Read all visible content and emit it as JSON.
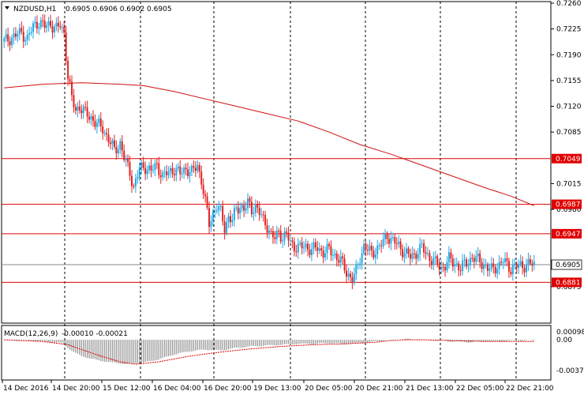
{
  "header": {
    "symbol": "NZDUSD,H1",
    "ohlc": "0.6905 0.6906 0.6902 0.6905",
    "dropdown_icon": "triangle-down-icon"
  },
  "indicator": {
    "label": "MACD(12,26,9)",
    "values": "-0.00010 -0.00021"
  },
  "colors": {
    "bull": "#1ca7e6",
    "bear": "#e02020",
    "ma": "#d01010",
    "hline": "#e00000",
    "grid": "#000000",
    "macd_hist": "#9a9a9a",
    "macd_signal": "#e00000",
    "current_line": "#8a8a8a"
  },
  "chart_data": [
    {
      "type": "candlestick",
      "title": "NZDUSD,H1",
      "y_ticks": [
        "0.7260",
        "0.7225",
        "0.7190",
        "0.7155",
        "0.7120",
        "0.7085",
        "0.7015",
        "0.6980",
        "0.6875"
      ],
      "ylim": [
        0.6875,
        0.726
      ],
      "x_ticks": [
        "14 Dec 2016",
        "14 Dec 20:00",
        "15 Dec 12:00",
        "16 Dec 04:00",
        "16 Dec 20:00",
        "19 Dec 13:00",
        "20 Dec 05:00",
        "20 Dec 21:00",
        "21 Dec 13:00",
        "22 Dec 05:00",
        "22 Dec 21:00"
      ],
      "horizontal_levels": [
        {
          "label": "0.7049",
          "value": 0.7049
        },
        {
          "label": "0.6987",
          "value": 0.6987
        },
        {
          "label": "0.6947",
          "value": 0.6947
        },
        {
          "label": "0.6881",
          "value": 0.6881
        }
      ],
      "current_price": {
        "label": "0.6905",
        "value": 0.6905
      },
      "close_path": [
        [
          0,
          0.7208
        ],
        [
          5,
          0.7215
        ],
        [
          9,
          0.722
        ],
        [
          12,
          0.7212
        ],
        [
          15,
          0.7228
        ],
        [
          18,
          0.7235
        ],
        [
          21,
          0.7228
        ],
        [
          24,
          0.7232
        ],
        [
          27,
          0.7225
        ],
        [
          29,
          0.723
        ],
        [
          31,
          0.722
        ],
        [
          33,
          0.716
        ],
        [
          35,
          0.713
        ],
        [
          37,
          0.7115
        ],
        [
          39,
          0.712
        ],
        [
          42,
          0.711
        ],
        [
          45,
          0.7105
        ],
        [
          48,
          0.7095
        ],
        [
          51,
          0.709
        ],
        [
          54,
          0.7075
        ],
        [
          57,
          0.706
        ],
        [
          60,
          0.707
        ],
        [
          62,
          0.705
        ],
        [
          65,
          0.703
        ],
        [
          67,
          0.701
        ],
        [
          70,
          0.7035
        ],
        [
          73,
          0.7038
        ],
        [
          76,
          0.7032
        ],
        [
          79,
          0.704
        ],
        [
          82,
          0.7025
        ],
        [
          85,
          0.703
        ],
        [
          88,
          0.7035
        ],
        [
          91,
          0.7028
        ],
        [
          94,
          0.7036
        ],
        [
          97,
          0.703
        ],
        [
          100,
          0.704
        ],
        [
          102,
          0.702
        ],
        [
          104,
          0.699
        ],
        [
          106,
          0.696
        ],
        [
          108,
          0.6975
        ],
        [
          110,
          0.6985
        ],
        [
          112,
          0.6975
        ],
        [
          114,
          0.6955
        ],
        [
          116,
          0.697
        ],
        [
          118,
          0.6965
        ],
        [
          120,
          0.698
        ],
        [
          122,
          0.6985
        ],
        [
          124,
          0.698
        ],
        [
          126,
          0.6988
        ],
        [
          128,
          0.698
        ],
        [
          130,
          0.6985
        ],
        [
          132,
          0.6975
        ],
        [
          134,
          0.6965
        ],
        [
          136,
          0.6958
        ],
        [
          138,
          0.6945
        ],
        [
          140,
          0.694
        ],
        [
          142,
          0.695
        ],
        [
          144,
          0.6942
        ],
        [
          146,
          0.6945
        ],
        [
          148,
          0.6935
        ],
        [
          150,
          0.693
        ],
        [
          153,
          0.6928
        ],
        [
          156,
          0.693
        ],
        [
          159,
          0.6925
        ],
        [
          162,
          0.6928
        ],
        [
          165,
          0.6922
        ],
        [
          168,
          0.6925
        ],
        [
          171,
          0.6918
        ],
        [
          174,
          0.691
        ],
        [
          177,
          0.6895
        ],
        [
          180,
          0.6885
        ],
        [
          182,
          0.6895
        ],
        [
          184,
          0.6915
        ],
        [
          186,
          0.693
        ],
        [
          188,
          0.6925
        ],
        [
          190,
          0.692
        ],
        [
          192,
          0.6925
        ],
        [
          194,
          0.693
        ],
        [
          196,
          0.6935
        ],
        [
          198,
          0.6945
        ],
        [
          200,
          0.694
        ],
        [
          202,
          0.6935
        ],
        [
          204,
          0.693
        ],
        [
          206,
          0.6925
        ],
        [
          208,
          0.692
        ],
        [
          210,
          0.6915
        ],
        [
          212,
          0.6918
        ],
        [
          214,
          0.6925
        ],
        [
          216,
          0.6928
        ],
        [
          218,
          0.692
        ],
        [
          220,
          0.6915
        ],
        [
          222,
          0.691
        ],
        [
          224,
          0.6905
        ],
        [
          226,
          0.69
        ],
        [
          228,
          0.6905
        ],
        [
          230,
          0.6912
        ],
        [
          232,
          0.6908
        ],
        [
          234,
          0.6905
        ],
        [
          236,
          0.69
        ],
        [
          238,
          0.6905
        ],
        [
          240,
          0.691
        ],
        [
          242,
          0.6915
        ],
        [
          244,
          0.6912
        ],
        [
          246,
          0.691
        ],
        [
          248,
          0.6905
        ],
        [
          250,
          0.69
        ],
        [
          252,
          0.6898
        ],
        [
          254,
          0.6902
        ],
        [
          256,
          0.6905
        ],
        [
          258,
          0.691
        ],
        [
          260,
          0.6905
        ],
        [
          262,
          0.69
        ],
        [
          264,
          0.6902
        ],
        [
          266,
          0.6903
        ],
        [
          268,
          0.6904
        ],
        [
          270,
          0.6905
        ],
        [
          272,
          0.6906
        ],
        [
          274,
          0.6905
        ]
      ],
      "moving_average": [
        [
          0,
          0.7145
        ],
        [
          20,
          0.715
        ],
        [
          40,
          0.7152
        ],
        [
          60,
          0.715
        ],
        [
          72,
          0.7148
        ],
        [
          88,
          0.714
        ],
        [
          104,
          0.713
        ],
        [
          120,
          0.712
        ],
        [
          136,
          0.711
        ],
        [
          152,
          0.71
        ],
        [
          168,
          0.7085
        ],
        [
          184,
          0.7068
        ],
        [
          200,
          0.7055
        ],
        [
          216,
          0.704
        ],
        [
          232,
          0.7025
        ],
        [
          248,
          0.701
        ],
        [
          262,
          0.6998
        ],
        [
          274,
          0.6985
        ]
      ]
    },
    {
      "type": "macd",
      "title": "MACD(12,26,9)",
      "y_ticks": [
        "0.00098",
        "0.00",
        "-0.00377"
      ],
      "ylim": [
        -0.00377,
        0.00098
      ],
      "histogram": [
        [
          0,
          0.0
        ],
        [
          10,
          -0.0001
        ],
        [
          20,
          -0.0002
        ],
        [
          30,
          -0.0004
        ],
        [
          33,
          -0.001
        ],
        [
          36,
          -0.0015
        ],
        [
          40,
          -0.002
        ],
        [
          48,
          -0.0025
        ],
        [
          56,
          -0.0028
        ],
        [
          64,
          -0.003
        ],
        [
          72,
          -0.0028
        ],
        [
          80,
          -0.0024
        ],
        [
          88,
          -0.0018
        ],
        [
          96,
          -0.0014
        ],
        [
          104,
          -0.0012
        ],
        [
          112,
          -0.0013
        ],
        [
          120,
          -0.001
        ],
        [
          128,
          -0.0008
        ],
        [
          136,
          -0.0007
        ],
        [
          144,
          -0.0006
        ],
        [
          152,
          -0.0005
        ],
        [
          160,
          -0.0005
        ],
        [
          168,
          -0.0004
        ],
        [
          176,
          -0.0005
        ],
        [
          184,
          -0.0004
        ],
        [
          192,
          -0.0002
        ],
        [
          200,
          0.0
        ],
        [
          208,
          0.0001
        ],
        [
          216,
          0.0
        ],
        [
          224,
          -0.0001
        ],
        [
          232,
          -0.0002
        ],
        [
          240,
          -0.0003
        ],
        [
          248,
          -0.0002
        ],
        [
          256,
          -0.0002
        ],
        [
          264,
          -0.0001
        ],
        [
          274,
          -0.0001
        ]
      ],
      "signal": [
        [
          0,
          0.0
        ],
        [
          20,
          -0.0002
        ],
        [
          33,
          -0.0006
        ],
        [
          40,
          -0.0012
        ],
        [
          50,
          -0.002
        ],
        [
          60,
          -0.0027
        ],
        [
          68,
          -0.003
        ],
        [
          80,
          -0.0027
        ],
        [
          96,
          -0.002
        ],
        [
          112,
          -0.0015
        ],
        [
          128,
          -0.0011
        ],
        [
          144,
          -0.0008
        ],
        [
          160,
          -0.0006
        ],
        [
          176,
          -0.0005
        ],
        [
          192,
          -0.0003
        ],
        [
          200,
          -0.0001
        ],
        [
          208,
          0.0
        ],
        [
          216,
          0.0
        ],
        [
          232,
          -0.0001
        ],
        [
          248,
          -0.0002
        ],
        [
          262,
          -0.0002
        ],
        [
          274,
          -0.0002
        ]
      ]
    }
  ]
}
